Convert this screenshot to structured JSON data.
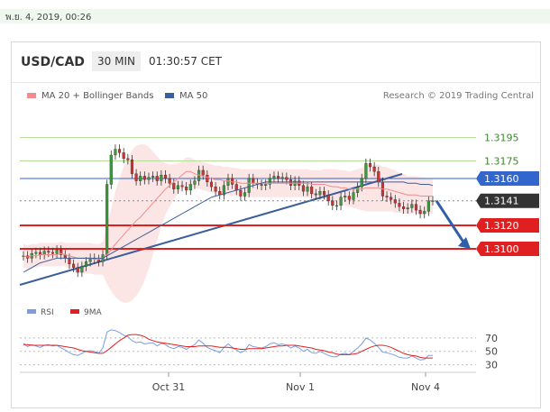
{
  "date_header": "พ.ย. 4, 2019, 00:26",
  "header": {
    "pair": "USD/CAD",
    "timeframe": "30 MIN",
    "time": "01:30:57 CET"
  },
  "legend": {
    "ma20": "MA 20 + Bollinger Bands",
    "ma50": "MA 50",
    "credit": "Research © 2019 Trading Central"
  },
  "rsi_legend": {
    "rsi": "RSI",
    "ma": "9MA"
  },
  "colors": {
    "ma20": "#f08c8c",
    "ma50": "#3a5f9a",
    "level_green": "#b6dd9a",
    "level_blue": "#3366cc",
    "level_red": "#e02020",
    "band": "#fbdede",
    "rsi": "#7b9ee0",
    "rsi_ma": "#e02020",
    "up": "#3a9a3a",
    "down": "#cc3333"
  },
  "chart_data": [
    {
      "type": "candlestick",
      "x_tick_labels": [
        "Oct 31",
        "Nov 1",
        "Nov 4"
      ],
      "ylim": [
        1.306,
        1.322
      ],
      "levels": [
        {
          "value": 1.3195,
          "label": "1.3195",
          "style": "green"
        },
        {
          "value": 1.3175,
          "label": "1.3175",
          "style": "green"
        },
        {
          "value": 1.316,
          "label": "1.3160",
          "style": "blue-box"
        },
        {
          "value": 1.3141,
          "label": "1.3141",
          "style": "current-price"
        },
        {
          "value": 1.312,
          "label": "1.3120",
          "style": "red-box"
        },
        {
          "value": 1.31,
          "label": "1.3100",
          "style": "red-box"
        }
      ],
      "close": [
        1.3094,
        1.3092,
        1.3096,
        1.3097,
        1.3095,
        1.3098,
        1.3097,
        1.3096,
        1.3099,
        1.3095,
        1.3092,
        1.3087,
        1.3084,
        1.308,
        1.3085,
        1.3089,
        1.3092,
        1.3091,
        1.3089,
        1.3095,
        1.3155,
        1.318,
        1.3185,
        1.3182,
        1.3177,
        1.3176,
        1.3164,
        1.3158,
        1.3162,
        1.3159,
        1.3161,
        1.3162,
        1.3158,
        1.3163,
        1.316,
        1.3156,
        1.3151,
        1.3154,
        1.3153,
        1.315,
        1.3155,
        1.3158,
        1.3167,
        1.3163,
        1.3157,
        1.3153,
        1.3149,
        1.3146,
        1.3154,
        1.316,
        1.3155,
        1.315,
        1.3145,
        1.3148,
        1.316,
        1.3156,
        1.3155,
        1.3154,
        1.3155,
        1.316,
        1.3162,
        1.316,
        1.3161,
        1.3159,
        1.3154,
        1.3158,
        1.3154,
        1.3149,
        1.3153,
        1.3147,
        1.3146,
        1.3149,
        1.3146,
        1.3141,
        1.3137,
        1.3137,
        1.3144,
        1.3145,
        1.3142,
        1.3148,
        1.3153,
        1.316,
        1.3173,
        1.317,
        1.3166,
        1.3157,
        1.3145,
        1.3144,
        1.3142,
        1.3139,
        1.3136,
        1.3134,
        1.3135,
        1.3138,
        1.3133,
        1.313,
        1.3132,
        1.3141,
        1.3141
      ],
      "ma20": [
        1.3094,
        1.3093,
        1.3094,
        1.3094,
        1.3095,
        1.3095,
        1.3095,
        1.3095,
        1.3095,
        1.3096,
        1.3095,
        1.3094,
        1.3093,
        1.3092,
        1.3092,
        1.3092,
        1.3092,
        1.3091,
        1.3091,
        1.3092,
        1.3095,
        1.3099,
        1.3104,
        1.3108,
        1.3112,
        1.3116,
        1.312,
        1.3124,
        1.3127,
        1.3131,
        1.3135,
        1.3139,
        1.3143,
        1.3147,
        1.3151,
        1.3154,
        1.3157,
        1.316,
        1.3163,
        1.3166,
        1.3166,
        1.3164,
        1.3163,
        1.3162,
        1.3161,
        1.316,
        1.3159,
        1.3159,
        1.3158,
        1.3158,
        1.3157,
        1.3157,
        1.3156,
        1.3156,
        1.3156,
        1.3156,
        1.3156,
        1.3156,
        1.3156,
        1.3156,
        1.3156,
        1.3156,
        1.3156,
        1.3156,
        1.3156,
        1.3156,
        1.3156,
        1.3156,
        1.3156,
        1.3155,
        1.3155,
        1.3155,
        1.3155,
        1.3154,
        1.3153,
        1.3153,
        1.3152,
        1.3152,
        1.3151,
        1.3151,
        1.3151,
        1.3151,
        1.3152,
        1.3152,
        1.3152,
        1.3152,
        1.3151,
        1.3151,
        1.315,
        1.3149,
        1.3148,
        1.3147,
        1.3146,
        1.3146,
        1.3146,
        1.3145,
        1.3145,
        1.3145,
        1.3145
      ],
      "ma50": [
        1.308,
        1.3082,
        1.3084,
        1.3086,
        1.3088,
        1.3089,
        1.309,
        1.3091,
        1.3092,
        1.3092,
        1.3092,
        1.3092,
        1.3092,
        1.3092,
        1.3092,
        1.3092,
        1.3092,
        1.3092,
        1.3092,
        1.3092,
        1.3094,
        1.3096,
        1.3098,
        1.31,
        1.3102,
        1.3104,
        1.3106,
        1.3108,
        1.311,
        1.3112,
        1.3114,
        1.3116,
        1.3118,
        1.312,
        1.3122,
        1.3124,
        1.3126,
        1.3128,
        1.313,
        1.3132,
        1.3134,
        1.3136,
        1.3138,
        1.314,
        1.3142,
        1.3144,
        1.3145,
        1.3146,
        1.3147,
        1.3148,
        1.3149,
        1.315,
        1.3151,
        1.3152,
        1.3153,
        1.3154,
        1.3155,
        1.3156,
        1.3157,
        1.3157,
        1.3157,
        1.3157,
        1.3157,
        1.3157,
        1.3157,
        1.3157,
        1.3157,
        1.3157,
        1.3157,
        1.3157,
        1.3157,
        1.3157,
        1.3157,
        1.3157,
        1.3157,
        1.3157,
        1.3157,
        1.3157,
        1.3157,
        1.3157,
        1.3157,
        1.3157,
        1.3157,
        1.3157,
        1.3157,
        1.3157,
        1.3157,
        1.3157,
        1.3157,
        1.3157,
        1.3157,
        1.3157,
        1.3156,
        1.3156,
        1.3156,
        1.3155,
        1.3155,
        1.3155,
        1.3154
      ],
      "bb_width": [
        0.001,
        0.001,
        0.001,
        0.001,
        0.001,
        0.001,
        0.001,
        0.001,
        0.001,
        0.001,
        0.001,
        0.0011,
        0.0012,
        0.0013,
        0.0013,
        0.0013,
        0.0013,
        0.0013,
        0.0013,
        0.0014,
        0.0025,
        0.0035,
        0.0045,
        0.0052,
        0.0058,
        0.0062,
        0.0064,
        0.0064,
        0.0062,
        0.0058,
        0.0052,
        0.0044,
        0.0036,
        0.0028,
        0.0022,
        0.0018,
        0.0015,
        0.0013,
        0.0012,
        0.0012,
        0.0012,
        0.0012,
        0.0012,
        0.0012,
        0.0012,
        0.0012,
        0.0012,
        0.0012,
        0.0012,
        0.0012,
        0.0012,
        0.0012,
        0.0012,
        0.0012,
        0.0012,
        0.0012,
        0.0012,
        0.0012,
        0.0012,
        0.0012,
        0.0012,
        0.0012,
        0.0012,
        0.0012,
        0.0012,
        0.0012,
        0.0012,
        0.0012,
        0.0012,
        0.0012,
        0.0012,
        0.0012,
        0.0013,
        0.0014,
        0.0015,
        0.0015,
        0.0015,
        0.0015,
        0.0015,
        0.0016,
        0.0017,
        0.0018,
        0.002,
        0.002,
        0.002,
        0.002,
        0.0019,
        0.0019,
        0.0018,
        0.0018,
        0.0017,
        0.0017,
        0.0016,
        0.0016,
        0.0016,
        0.0016,
        0.0016,
        0.0015,
        0.0015
      ],
      "forecast": {
        "from": 1.3141,
        "to": 1.31
      }
    },
    {
      "type": "line",
      "name": "RSI",
      "yticks": [
        70,
        50,
        30
      ],
      "ylim": [
        20,
        90
      ],
      "rsi": [
        62,
        57,
        60,
        58,
        56,
        59,
        60,
        58,
        59,
        55,
        52,
        48,
        45,
        44,
        47,
        50,
        51,
        50,
        47,
        55,
        79,
        82,
        81,
        78,
        74,
        72,
        66,
        63,
        64,
        61,
        62,
        63,
        58,
        62,
        60,
        56,
        54,
        57,
        56,
        53,
        57,
        60,
        67,
        62,
        56,
        53,
        51,
        48,
        56,
        61,
        56,
        52,
        48,
        51,
        60,
        57,
        56,
        55,
        57,
        61,
        63,
        60,
        61,
        59,
        55,
        58,
        55,
        50,
        53,
        48,
        47,
        50,
        47,
        44,
        42,
        42,
        46,
        47,
        45,
        50,
        55,
        61,
        70,
        67,
        62,
        56,
        49,
        48,
        46,
        44,
        41,
        40,
        40,
        43,
        40,
        37,
        38,
        44,
        44
      ],
      "ma9": [
        60,
        60,
        59,
        59,
        59,
        59,
        59,
        59,
        59,
        58,
        57,
        56,
        55,
        53,
        51,
        50,
        49,
        48,
        47,
        47,
        51,
        56,
        61,
        66,
        70,
        74,
        75,
        75,
        74,
        72,
        68,
        66,
        64,
        63,
        62,
        61,
        60,
        59,
        58,
        57,
        57,
        57,
        58,
        58,
        58,
        58,
        57,
        56,
        56,
        56,
        55,
        54,
        53,
        53,
        54,
        54,
        54,
        54,
        55,
        56,
        57,
        58,
        58,
        59,
        59,
        59,
        58,
        57,
        56,
        55,
        53,
        52,
        51,
        49,
        48,
        46,
        45,
        45,
        45,
        46,
        47,
        50,
        53,
        56,
        58,
        59,
        59,
        58,
        56,
        53,
        50,
        47,
        45,
        44,
        43,
        41,
        40,
        40,
        40
      ]
    }
  ]
}
